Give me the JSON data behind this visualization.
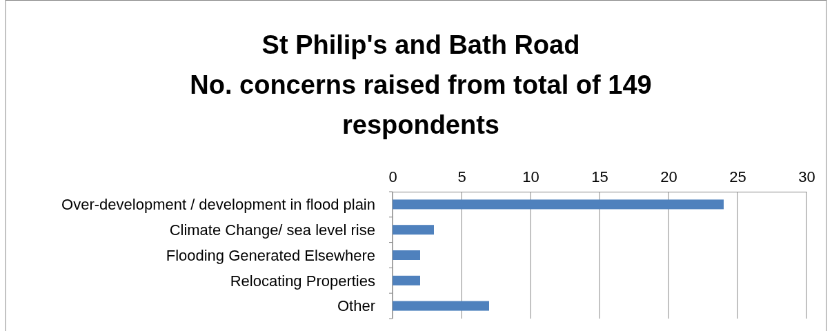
{
  "chart_data": {
    "type": "bar",
    "orientation": "horizontal",
    "title": "St Philip's and Bath Road\nNo. concerns raised from total of 149 respondents",
    "categories": [
      "Over-development / development in flood plain",
      "Climate Change/ sea level rise",
      "Flooding Generated Elsewhere",
      "Relocating Properties",
      "Other"
    ],
    "values": [
      24,
      3,
      2,
      2,
      7
    ],
    "color": "#4f81bd",
    "xlim": [
      0,
      30
    ],
    "xticks": [
      0,
      5,
      10,
      15,
      20,
      25,
      30
    ],
    "grid": "x"
  }
}
